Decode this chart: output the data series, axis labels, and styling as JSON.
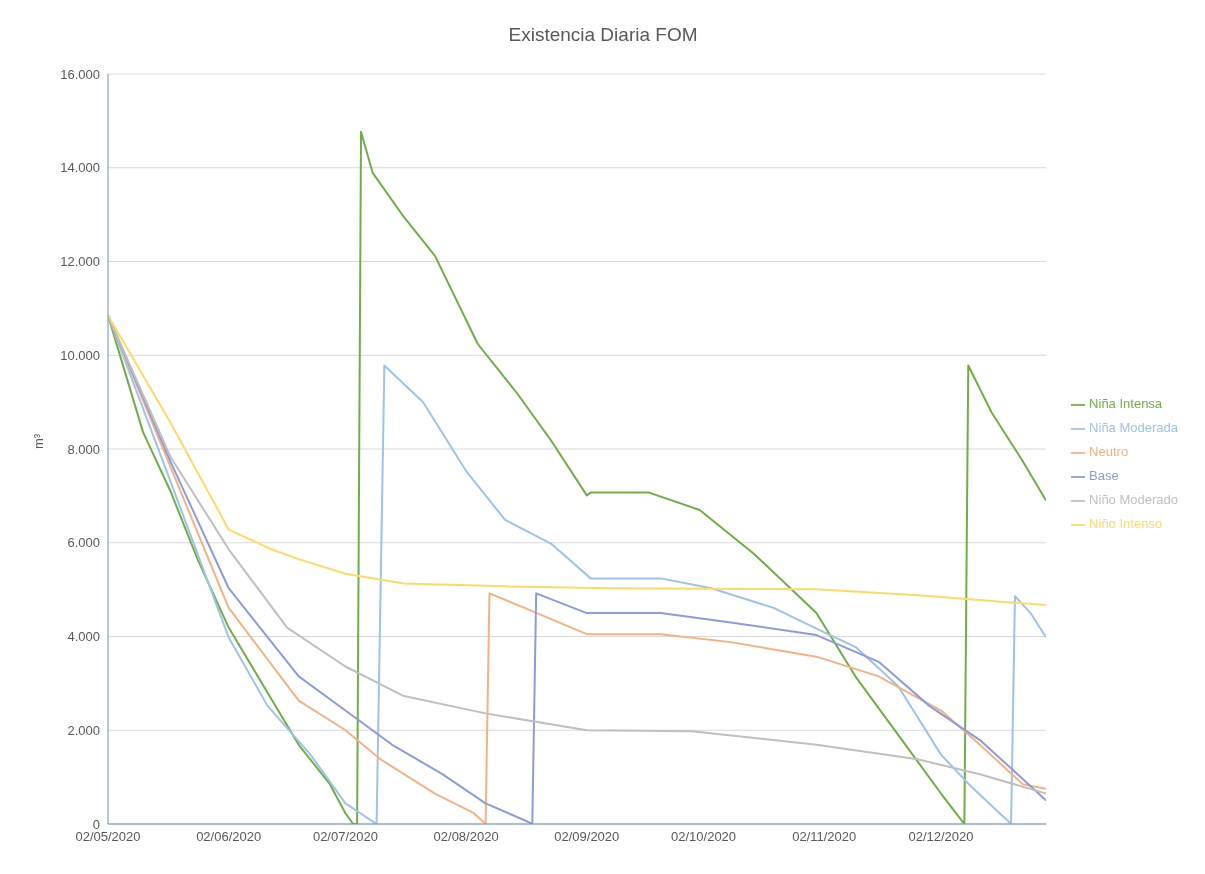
{
  "chart_data": {
    "type": "line",
    "title": "Existencia Diaria FOM",
    "ylabel": "m³",
    "xlim": [
      "2020-05-02",
      "2020-12-29"
    ],
    "xticks": [
      {
        "value": "2020-05-02",
        "label": "02/05/2020"
      },
      {
        "value": "2020-06-02",
        "label": "02/06/2020"
      },
      {
        "value": "2020-07-02",
        "label": "02/07/2020"
      },
      {
        "value": "2020-08-02",
        "label": "02/08/2020"
      },
      {
        "value": "2020-09-02",
        "label": "02/09/2020"
      },
      {
        "value": "2020-10-02",
        "label": "02/10/2020"
      },
      {
        "value": "2020-11-02",
        "label": "02/11/2020"
      },
      {
        "value": "2020-12-02",
        "label": "02/12/2020"
      }
    ],
    "ylim": [
      0,
      16000
    ],
    "yticks": [
      {
        "value": 0,
        "label": "0"
      },
      {
        "value": 2000,
        "label": "2.000"
      },
      {
        "value": 4000,
        "label": "4.000"
      },
      {
        "value": 6000,
        "label": "6.000"
      },
      {
        "value": 8000,
        "label": "8.000"
      },
      {
        "value": 10000,
        "label": "10.000"
      },
      {
        "value": 12000,
        "label": "12.000"
      },
      {
        "value": 14000,
        "label": "14.000"
      },
      {
        "value": 16000,
        "label": "16.000"
      }
    ],
    "grid": "y",
    "legend": "right",
    "marker": "none",
    "line_style": "solid",
    "series": [
      {
        "name": "Niña Intensa",
        "color": "#70ad47",
        "x": [
          "2020-05-02",
          "2020-05-11",
          "2020-05-18",
          "2020-05-25",
          "2020-06-02",
          "2020-06-11",
          "2020-06-20",
          "2020-06-28",
          "2020-07-02",
          "2020-07-04",
          "2020-07-05",
          "2020-07-06",
          "2020-07-09",
          "2020-07-17",
          "2020-07-25",
          "2020-08-05",
          "2020-08-15",
          "2020-08-24",
          "2020-09-02",
          "2020-09-03",
          "2020-09-18",
          "2020-10-01",
          "2020-10-15",
          "2020-10-31",
          "2020-11-10",
          "2020-11-21",
          "2020-12-02",
          "2020-12-08",
          "2020-12-09",
          "2020-12-15",
          "2020-12-23",
          "2020-12-29"
        ],
        "values": [
          10850,
          8360,
          7110,
          5650,
          4190,
          2940,
          1690,
          850,
          230,
          0,
          0,
          14770,
          13890,
          12950,
          12120,
          10240,
          9200,
          8160,
          7010,
          7070,
          7070,
          6700,
          5760,
          4500,
          3150,
          1900,
          650,
          0,
          9780,
          8780,
          7740,
          6900
        ]
      },
      {
        "name": "Niña Moderada",
        "color": "#9dc3e6",
        "x": [
          "2020-05-02",
          "2020-05-18",
          "2020-06-02",
          "2020-06-12",
          "2020-06-23",
          "2020-07-02",
          "2020-07-10",
          "2020-07-12",
          "2020-07-22",
          "2020-08-02",
          "2020-08-12",
          "2020-08-24",
          "2020-09-03",
          "2020-09-21",
          "2020-10-04",
          "2020-10-20",
          "2020-11-02",
          "2020-11-10",
          "2020-11-21",
          "2020-12-02",
          "2020-12-09",
          "2020-12-20",
          "2020-12-21",
          "2020-12-25",
          "2020-12-29"
        ],
        "values": [
          10850,
          7320,
          3980,
          2520,
          1480,
          440,
          0,
          9780,
          8990,
          7530,
          6490,
          5970,
          5240,
          5240,
          5030,
          4610,
          4090,
          3780,
          2940,
          1480,
          860,
          0,
          4860,
          4500,
          3980
        ]
      },
      {
        "name": "Neutro",
        "color": "#f4b183",
        "x": [
          "2020-05-02",
          "2020-05-18",
          "2020-06-02",
          "2020-06-20",
          "2020-07-02",
          "2020-07-11",
          "2020-07-25",
          "2020-08-04",
          "2020-08-07",
          "2020-08-08",
          "2020-08-17",
          "2020-09-02",
          "2020-09-21",
          "2020-10-09",
          "2020-10-31",
          "2020-11-16",
          "2020-12-02",
          "2020-12-12",
          "2020-12-23",
          "2020-12-29"
        ],
        "values": [
          10850,
          7630,
          4610,
          2630,
          2000,
          1380,
          650,
          230,
          0,
          4920,
          4610,
          4050,
          4050,
          3880,
          3570,
          3150,
          2420,
          1690,
          850,
          750
        ]
      },
      {
        "name": "Base",
        "color": "#8e9bd9",
        "x": [
          "2020-05-02",
          "2020-05-18",
          "2020-06-02",
          "2020-06-20",
          "2020-07-02",
          "2020-07-14",
          "2020-07-27",
          "2020-08-07",
          "2020-08-17",
          "2020-08-19",
          "2020-08-20",
          "2020-09-02",
          "2020-09-21",
          "2020-10-09",
          "2020-10-31",
          "2020-11-16",
          "2020-11-29",
          "2020-12-12",
          "2020-12-23",
          "2020-12-29"
        ],
        "values": [
          10850,
          7740,
          5030,
          3150,
          2420,
          1690,
          1060,
          440,
          80,
          0,
          4920,
          4500,
          4500,
          4300,
          4030,
          3460,
          2520,
          1790,
          960,
          500
        ]
      },
      {
        "name": "Niño Moderado",
        "color": "#bfbfbf",
        "x": [
          "2020-05-02",
          "2020-05-18",
          "2020-06-02",
          "2020-06-17",
          "2020-07-02",
          "2020-07-17",
          "2020-08-07",
          "2020-09-02",
          "2020-09-29",
          "2020-10-31",
          "2020-11-26",
          "2020-12-12",
          "2020-12-29"
        ],
        "values": [
          10850,
          7840,
          5860,
          4190,
          3360,
          2730,
          2360,
          2000,
          1980,
          1690,
          1380,
          1060,
          650
        ]
      },
      {
        "name": "Niño Intenso",
        "color": "#ffd966",
        "x": [
          "2020-05-02",
          "2020-05-18",
          "2020-06-02",
          "2020-06-13",
          "2020-06-20",
          "2020-07-02",
          "2020-07-17",
          "2020-08-12",
          "2020-09-08",
          "2020-10-31",
          "2020-11-26",
          "2020-12-29"
        ],
        "values": [
          10850,
          8570,
          6280,
          5860,
          5650,
          5340,
          5130,
          5070,
          5030,
          5010,
          4880,
          4670
        ]
      }
    ]
  }
}
